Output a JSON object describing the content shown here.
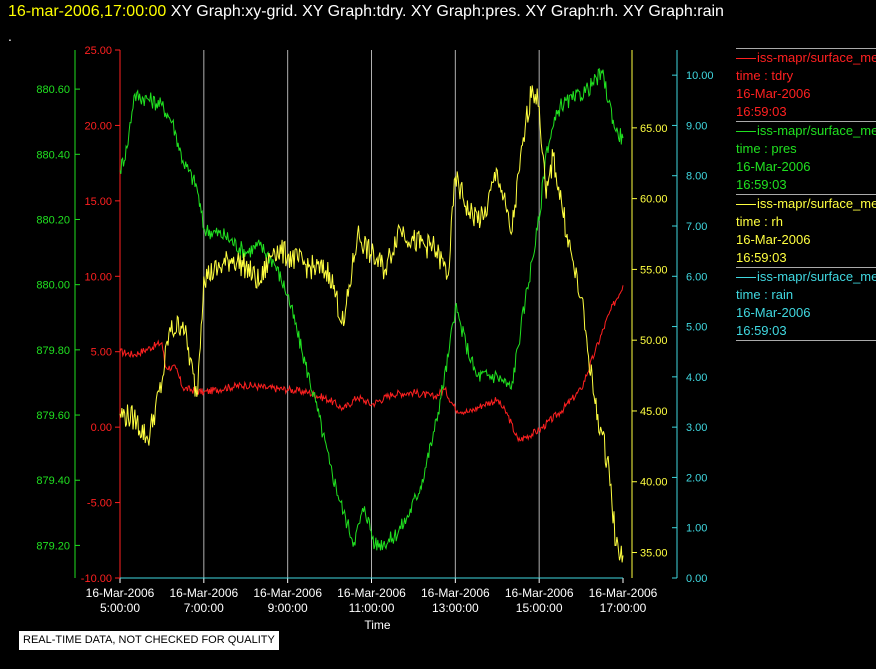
{
  "header": {
    "timestamp": "16-mar-2006,17:00:00",
    "graphs": "XY Graph:xy-grid.  XY Graph:tdry.  XY Graph:pres.  XY Graph:rh.  XY Graph:rain",
    "dot": "."
  },
  "notice": "REAL-TIME DATA, NOT CHECKED FOR QUALITY",
  "colors": {
    "tdry": "#ff2020",
    "pres": "#20e020",
    "rh": "#ffff40",
    "rain": "#40d8e0",
    "grid": "#b0b0b0"
  },
  "legend": [
    {
      "name": "iss-mapr/surface_met",
      "field": "time : tdry",
      "date": "16-Mar-2006",
      "time": "16:59:03",
      "color": "#ff2020"
    },
    {
      "name": "iss-mapr/surface_met",
      "field": "time : pres",
      "date": "16-Mar-2006",
      "time": "16:59:03",
      "color": "#20e020"
    },
    {
      "name": "iss-mapr/surface_met",
      "field": "time : rh",
      "date": "16-Mar-2006",
      "time": "16:59:03",
      "color": "#ffff40"
    },
    {
      "name": "iss-mapr/surface_met",
      "field": "time : rain",
      "date": "16-Mar-2006",
      "time": "16:59:03",
      "color": "#40d8e0"
    }
  ],
  "chart_data": {
    "type": "line",
    "title": "",
    "xlabel": "Time",
    "x_range": [
      "16-Mar-2006 05:00",
      "16-Mar-2006 17:00"
    ],
    "x_ticks": [
      {
        "date": "16-Mar-2006",
        "time": "5:00:00"
      },
      {
        "date": "16-Mar-2006",
        "time": "7:00:00"
      },
      {
        "date": "16-Mar-2006",
        "time": "9:00:00"
      },
      {
        "date": "16-Mar-2006",
        "time": "11:00:00"
      },
      {
        "date": "16-Mar-2006",
        "time": "13:00:00"
      },
      {
        "date": "16-Mar-2006",
        "time": "15:00:00"
      },
      {
        "date": "16-Mar-2006",
        "time": "17:00:00"
      }
    ],
    "grid": "vertical",
    "axes": {
      "pres": {
        "side": "left-outer",
        "ylim": [
          879.1,
          880.72
        ],
        "ticks": [
          "879.20",
          "879.40",
          "879.60",
          "879.80",
          "880.00",
          "880.20",
          "880.40",
          "880.60"
        ]
      },
      "tdry": {
        "side": "left-inner",
        "ylim": [
          -10,
          25
        ],
        "ticks": [
          "-10.00",
          "-5.00",
          "0.00",
          "5.00",
          "10.00",
          "15.00",
          "20.00",
          "25.00"
        ]
      },
      "rh": {
        "side": "right-inner",
        "ylim": [
          33.2,
          70.5
        ],
        "ticks": [
          "35.00",
          "40.00",
          "45.00",
          "50.00",
          "55.00",
          "60.00",
          "65.00"
        ]
      },
      "rain": {
        "side": "right-outer",
        "ylim": [
          0,
          10.5
        ],
        "ticks": [
          "0.00",
          "1.00",
          "2.00",
          "3.00",
          "4.00",
          "5.00",
          "6.00",
          "7.00",
          "8.00",
          "9.00",
          "10.00"
        ]
      }
    },
    "series": [
      {
        "key": "tdry",
        "points": [
          [
            "05:00",
            5.0
          ],
          [
            "05:20",
            4.8
          ],
          [
            "05:40",
            5.2
          ],
          [
            "06:00",
            5.6
          ],
          [
            "06:05",
            4.0
          ],
          [
            "06:20",
            3.9
          ],
          [
            "06:30",
            2.6
          ],
          [
            "07:00",
            2.3
          ],
          [
            "07:30",
            2.6
          ],
          [
            "08:00",
            2.8
          ],
          [
            "08:30",
            2.6
          ],
          [
            "09:00",
            2.5
          ],
          [
            "09:30",
            2.3
          ],
          [
            "10:00",
            1.8
          ],
          [
            "10:20",
            1.2
          ],
          [
            "10:40",
            2.0
          ],
          [
            "11:00",
            1.5
          ],
          [
            "11:30",
            2.2
          ],
          [
            "12:00",
            2.3
          ],
          [
            "12:30",
            2.0
          ],
          [
            "12:45",
            2.5
          ],
          [
            "13:00",
            1.2
          ],
          [
            "13:20",
            1.0
          ],
          [
            "13:40",
            1.5
          ],
          [
            "14:00",
            1.8
          ],
          [
            "14:15",
            0.8
          ],
          [
            "14:30",
            -0.9
          ],
          [
            "15:00",
            -0.2
          ],
          [
            "15:30",
            1.0
          ],
          [
            "16:00",
            2.5
          ],
          [
            "16:20",
            5.0
          ],
          [
            "16:40",
            7.5
          ],
          [
            "17:00",
            9.4
          ]
        ]
      },
      {
        "key": "pres",
        "points": [
          [
            "05:00",
            880.35
          ],
          [
            "05:10",
            880.42
          ],
          [
            "05:20",
            880.58
          ],
          [
            "05:40",
            880.57
          ],
          [
            "06:00",
            880.55
          ],
          [
            "06:15",
            880.5
          ],
          [
            "06:30",
            880.38
          ],
          [
            "06:50",
            880.3
          ],
          [
            "07:00",
            880.17
          ],
          [
            "07:30",
            880.15
          ],
          [
            "08:00",
            880.1
          ],
          [
            "08:20",
            880.12
          ],
          [
            "08:40",
            880.07
          ],
          [
            "09:00",
            879.97
          ],
          [
            "09:20",
            879.8
          ],
          [
            "09:40",
            879.64
          ],
          [
            "10:00",
            879.45
          ],
          [
            "10:20",
            879.3
          ],
          [
            "10:35",
            879.21
          ],
          [
            "10:50",
            879.32
          ],
          [
            "11:05",
            879.2
          ],
          [
            "11:30",
            879.22
          ],
          [
            "11:50",
            879.28
          ],
          [
            "12:10",
            879.38
          ],
          [
            "12:30",
            879.55
          ],
          [
            "12:50",
            879.78
          ],
          [
            "13:00",
            879.93
          ],
          [
            "13:15",
            879.82
          ],
          [
            "13:30",
            879.72
          ],
          [
            "14:00",
            879.72
          ],
          [
            "14:20",
            879.68
          ],
          [
            "14:40",
            879.95
          ],
          [
            "15:00",
            880.2
          ],
          [
            "15:10",
            880.41
          ],
          [
            "15:30",
            880.55
          ],
          [
            "15:50",
            880.57
          ],
          [
            "16:10",
            880.6
          ],
          [
            "16:30",
            880.65
          ],
          [
            "16:50",
            880.47
          ],
          [
            "17:00",
            880.45
          ]
        ]
      },
      {
        "key": "rh",
        "points": [
          [
            "05:00",
            44.8
          ],
          [
            "05:20",
            44.5
          ],
          [
            "05:40",
            43.0
          ],
          [
            "06:00",
            47.0
          ],
          [
            "06:10",
            50.5
          ],
          [
            "06:30",
            51.3
          ],
          [
            "06:50",
            46.0
          ],
          [
            "07:00",
            54.5
          ],
          [
            "07:20",
            55.0
          ],
          [
            "07:40",
            55.8
          ],
          [
            "08:00",
            55.2
          ],
          [
            "08:20",
            54.0
          ],
          [
            "08:40",
            56.5
          ],
          [
            "09:00",
            56.0
          ],
          [
            "09:30",
            55.2
          ],
          [
            "10:00",
            54.8
          ],
          [
            "10:20",
            51.0
          ],
          [
            "10:40",
            57.5
          ],
          [
            "11:00",
            56.0
          ],
          [
            "11:20",
            55.0
          ],
          [
            "11:40",
            58.0
          ],
          [
            "12:00",
            57.0
          ],
          [
            "12:30",
            56.5
          ],
          [
            "12:50",
            54.6
          ],
          [
            "13:00",
            61.5
          ],
          [
            "13:20",
            59.0
          ],
          [
            "13:40",
            58.5
          ],
          [
            "14:00",
            62.0
          ],
          [
            "14:20",
            57.5
          ],
          [
            "14:40",
            65.0
          ],
          [
            "14:50",
            68.0
          ],
          [
            "15:00",
            66.5
          ],
          [
            "15:10",
            60.0
          ],
          [
            "15:20",
            63.0
          ],
          [
            "15:40",
            57.5
          ],
          [
            "15:50",
            55.0
          ],
          [
            "16:00",
            53.0
          ],
          [
            "16:20",
            45.5
          ],
          [
            "16:40",
            41.0
          ],
          [
            "16:50",
            35.5
          ],
          [
            "17:00",
            34.8
          ]
        ]
      },
      {
        "key": "rain",
        "points": [
          [
            "05:00",
            0.0
          ],
          [
            "17:00",
            0.0
          ]
        ]
      }
    ]
  }
}
